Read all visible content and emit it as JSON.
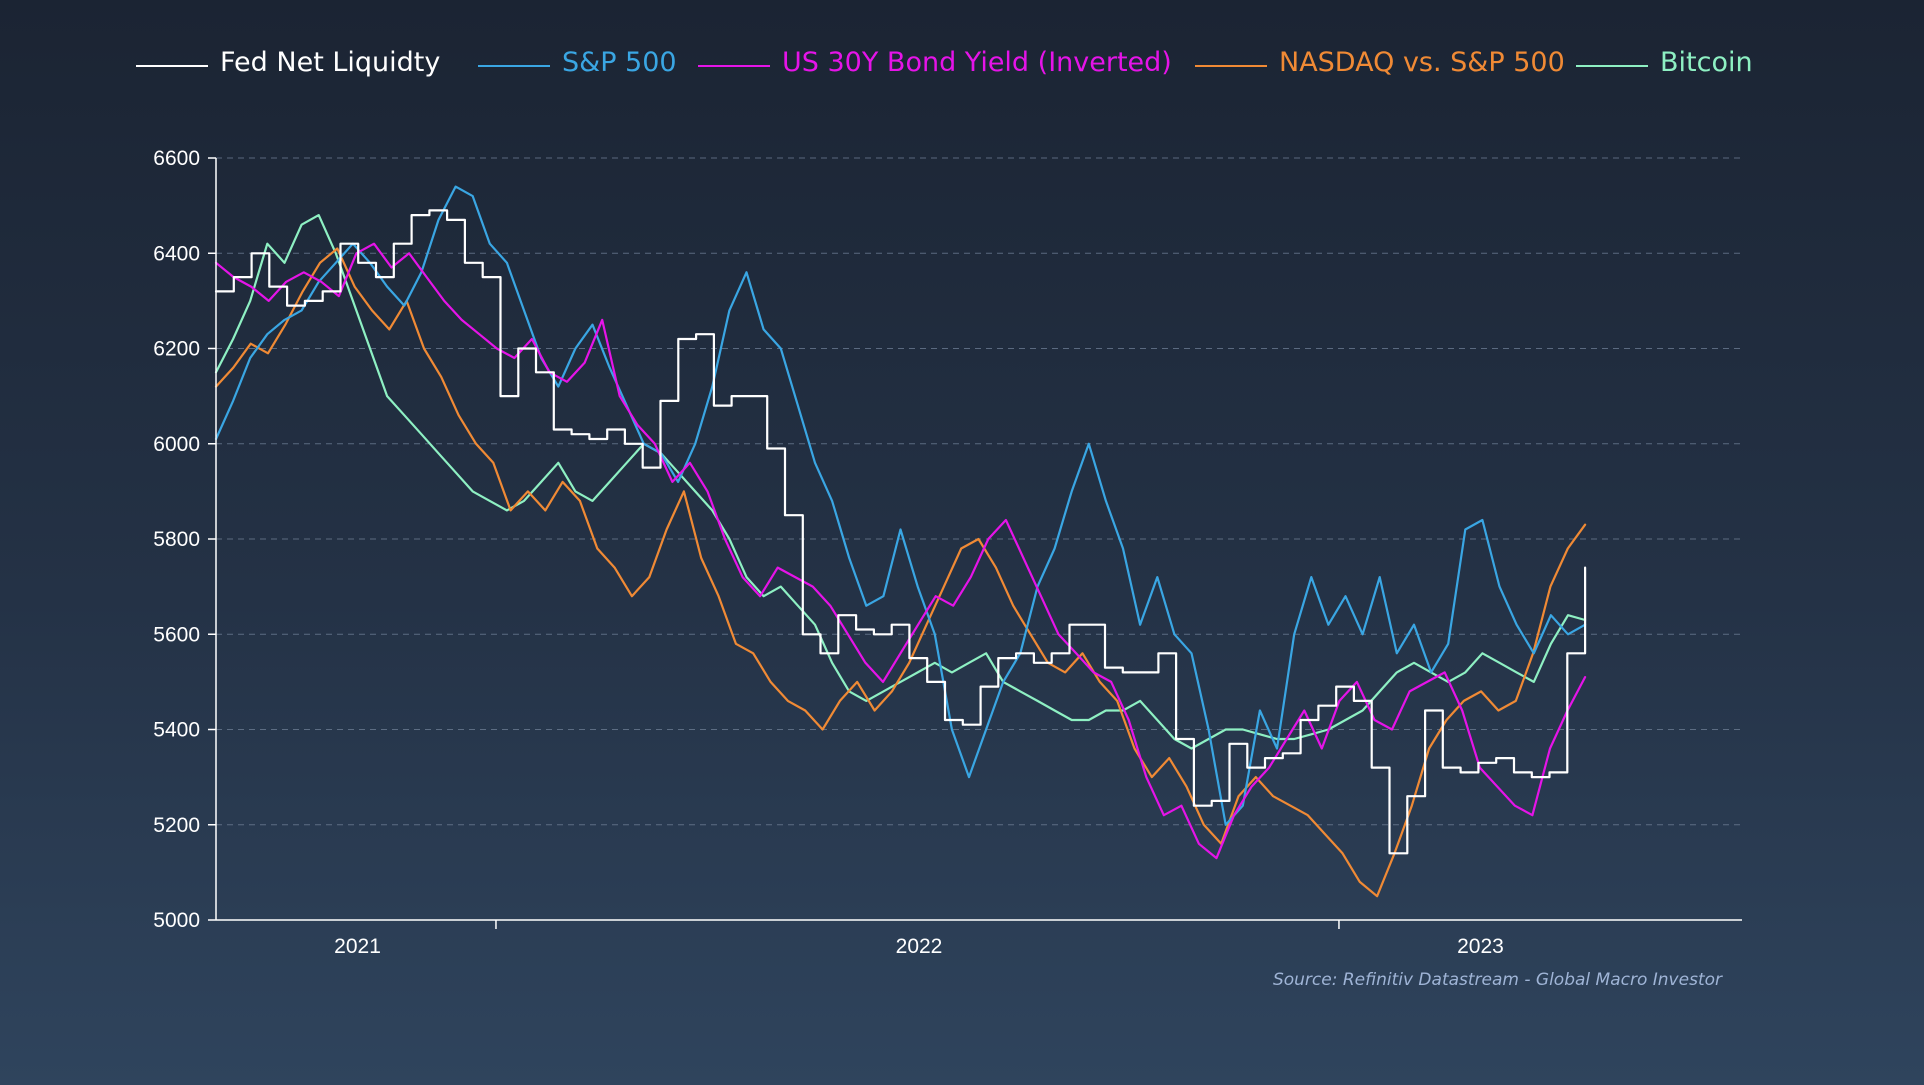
{
  "chart_data": {
    "type": "line",
    "title": "",
    "xlabel": "",
    "ylabel": "",
    "ylim": [
      5000,
      6600
    ],
    "yticks": [
      5000,
      5200,
      5400,
      5600,
      5800,
      6000,
      6200,
      6400,
      6600
    ],
    "x_start": "2020-10-01",
    "x_end": "2023-03-10",
    "xlim": [
      "2020-10-01",
      "2023-06-20"
    ],
    "xtick_labels": [
      {
        "label": "2021",
        "at": "2021-01-01"
      },
      {
        "label": "2022",
        "at": "2022-01-01"
      },
      {
        "label": "2023",
        "at": "2023-01-01"
      }
    ],
    "xtick_marks": [
      "2021-04-01",
      "2022-10-01"
    ],
    "grid": true,
    "legend_position": "top",
    "series": [
      {
        "name": "Fed Net Liquidty",
        "color": "#ffffff",
        "style": "step",
        "values": [
          6320,
          6350,
          6400,
          6330,
          6290,
          6300,
          6320,
          6420,
          6380,
          6350,
          6420,
          6480,
          6490,
          6470,
          6380,
          6350,
          6100,
          6200,
          6150,
          6030,
          6020,
          6010,
          6030,
          6000,
          5950,
          6090,
          6220,
          6230,
          6080,
          6100,
          6100,
          5990,
          5850,
          5600,
          5560,
          5640,
          5610,
          5600,
          5620,
          5550,
          5500,
          5420,
          5410,
          5490,
          5550,
          5560,
          5540,
          5560,
          5620,
          5620,
          5530,
          5520,
          5520,
          5560,
          5380,
          5240,
          5250,
          5370,
          5320,
          5340,
          5350,
          5420,
          5450,
          5490,
          5460,
          5320,
          5140,
          5260,
          5440,
          5320,
          5310,
          5330,
          5340,
          5310,
          5300,
          5310,
          5560,
          5740
        ]
      },
      {
        "name": "S&P 500",
        "color": "#3aa6e3",
        "values": [
          6010,
          6090,
          6180,
          6230,
          6260,
          6280,
          6340,
          6380,
          6420,
          6380,
          6330,
          6290,
          6360,
          6470,
          6540,
          6520,
          6420,
          6380,
          6280,
          6180,
          6120,
          6200,
          6250,
          6160,
          6080,
          6000,
          5980,
          5920,
          6000,
          6120,
          6280,
          6360,
          6240,
          6200,
          6080,
          5960,
          5880,
          5760,
          5660,
          5680,
          5820,
          5700,
          5600,
          5400,
          5300,
          5400,
          5500,
          5560,
          5700,
          5780,
          5900,
          6000,
          5880,
          5780,
          5620,
          5720,
          5600,
          5560,
          5400,
          5200,
          5240,
          5440,
          5360,
          5600,
          5720,
          5620,
          5680,
          5600,
          5720,
          5560,
          5620,
          5520,
          5580,
          5820,
          5840,
          5700,
          5620,
          5560,
          5640,
          5600,
          5620
        ]
      },
      {
        "name": "US 30Y Bond Yield (Inverted)",
        "color": "#e514e8",
        "values": [
          6380,
          6350,
          6330,
          6300,
          6340,
          6360,
          6340,
          6310,
          6400,
          6420,
          6370,
          6400,
          6350,
          6300,
          6260,
          6230,
          6200,
          6180,
          6220,
          6150,
          6130,
          6170,
          6260,
          6100,
          6040,
          6000,
          5920,
          5960,
          5900,
          5800,
          5720,
          5680,
          5740,
          5720,
          5700,
          5660,
          5600,
          5540,
          5500,
          5560,
          5620,
          5680,
          5660,
          5720,
          5800,
          5840,
          5760,
          5680,
          5600,
          5560,
          5520,
          5500,
          5420,
          5300,
          5220,
          5240,
          5160,
          5130,
          5220,
          5280,
          5320,
          5380,
          5440,
          5360,
          5460,
          5500,
          5420,
          5400,
          5480,
          5500,
          5520,
          5440,
          5320,
          5280,
          5240,
          5220,
          5360,
          5440,
          5510
        ]
      },
      {
        "name": "NASDAQ vs. S&P 500",
        "color": "#f08a35",
        "values": [
          6120,
          6160,
          6210,
          6190,
          6250,
          6320,
          6380,
          6410,
          6330,
          6280,
          6240,
          6300,
          6200,
          6140,
          6060,
          6000,
          5960,
          5860,
          5900,
          5860,
          5920,
          5880,
          5780,
          5740,
          5680,
          5720,
          5820,
          5900,
          5760,
          5680,
          5580,
          5560,
          5500,
          5460,
          5440,
          5400,
          5460,
          5500,
          5440,
          5480,
          5540,
          5620,
          5700,
          5780,
          5800,
          5740,
          5660,
          5600,
          5540,
          5520,
          5560,
          5500,
          5460,
          5360,
          5300,
          5340,
          5280,
          5200,
          5160,
          5260,
          5300,
          5260,
          5240,
          5220,
          5180,
          5140,
          5080,
          5050,
          5140,
          5240,
          5360,
          5420,
          5460,
          5480,
          5440,
          5460,
          5560,
          5700,
          5780,
          5830
        ]
      },
      {
        "name": "Bitcoin",
        "color": "#8ef0c3",
        "values": [
          6150,
          6220,
          6300,
          6420,
          6380,
          6460,
          6480,
          6400,
          6300,
          6200,
          6100,
          6060,
          6020,
          5980,
          5940,
          5900,
          5880,
          5860,
          5880,
          5920,
          5960,
          5900,
          5880,
          5920,
          5960,
          6000,
          5980,
          5940,
          5900,
          5860,
          5800,
          5720,
          5680,
          5700,
          5660,
          5620,
          5540,
          5480,
          5460,
          5480,
          5500,
          5520,
          5540,
          5520,
          5540,
          5560,
          5500,
          5480,
          5460,
          5440,
          5420,
          5420,
          5440,
          5440,
          5460,
          5420,
          5380,
          5360,
          5380,
          5400,
          5400,
          5390,
          5380,
          5380,
          5390,
          5400,
          5420,
          5440,
          5480,
          5520,
          5540,
          5520,
          5500,
          5520,
          5560,
          5540,
          5520,
          5500,
          5580,
          5640,
          5630
        ]
      }
    ]
  },
  "source_note": "Source: Refinitiv Datastream - Global Macro Investor"
}
